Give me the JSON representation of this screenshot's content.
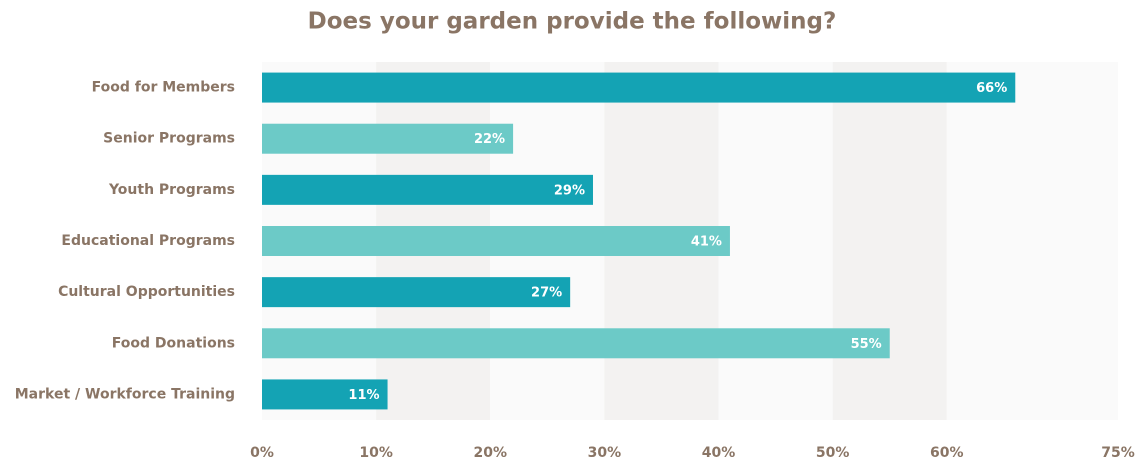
{
  "chart_data": {
    "type": "hbar",
    "title": "Does your garden provide the following?",
    "categories": [
      "Food for Members",
      "Senior Programs",
      "Youth Programs",
      "Educational Programs",
      "Cultural Opportunities",
      "Food Donations",
      "Market / Workforce  Training"
    ],
    "values": [
      66,
      22,
      29,
      41,
      27,
      55,
      11
    ],
    "value_labels": [
      "66%",
      "22%",
      "29%",
      "41%",
      "27%",
      "55%",
      "11%"
    ],
    "colors": [
      "#14a3b4",
      "#6ccac7",
      "#14a3b4",
      "#6ccac7",
      "#14a3b4",
      "#6ccac7",
      "#14a3b4"
    ],
    "xlim": [
      0,
      75
    ],
    "xticks": [
      {
        "value": 0,
        "label": "0%"
      },
      {
        "value": 10,
        "label": "10%"
      },
      {
        "value": 20,
        "label": "20%"
      },
      {
        "value": 30,
        "label": "30%"
      },
      {
        "value": 40,
        "label": "40%"
      },
      {
        "value": 50,
        "label": "50%"
      },
      {
        "value": 60,
        "label": "60%"
      },
      {
        "value": 75,
        "label": "75%"
      }
    ],
    "grid": true
  }
}
